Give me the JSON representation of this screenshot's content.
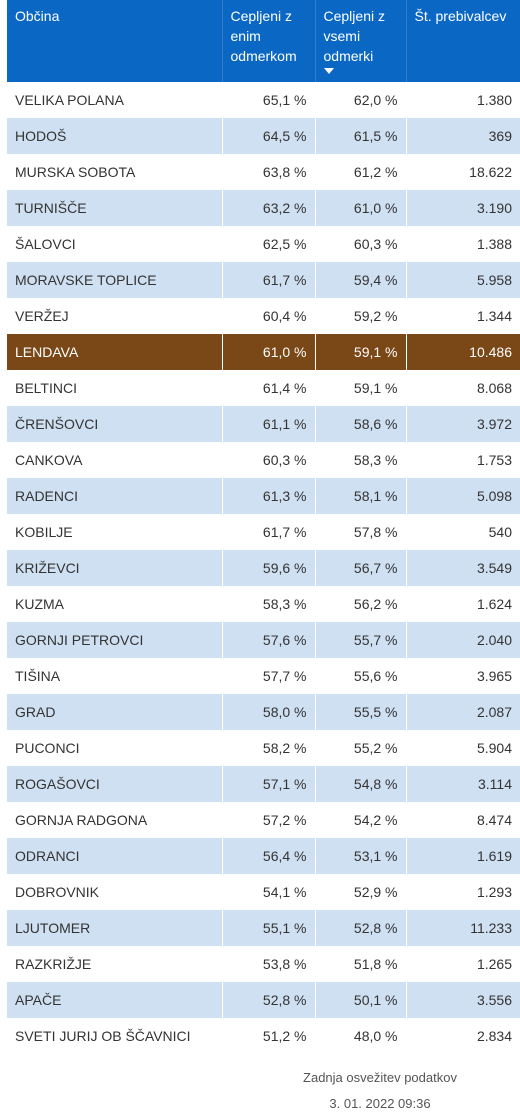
{
  "header": {
    "col1": "Občina",
    "col2_line1": "Cepljeni z",
    "col2_line2": "enim",
    "col2_line3": "odmerkom",
    "col3_line1": "Cepljeni z",
    "col3_line2": "vsemi",
    "col3_line3": "odmerki",
    "col4": "Št. prebivalcev",
    "sort_icon": "sort-descending-icon"
  },
  "highlight_color": "#7a4717",
  "header_color": "#0a68c4",
  "stripe_color": "#cfe0f2",
  "rows": [
    {
      "name": "VELIKA POLANA",
      "one": "65,1 %",
      "all": "62,0 %",
      "pop": "1.380",
      "highlight": false
    },
    {
      "name": "HODOŠ",
      "one": "64,5 %",
      "all": "61,5 %",
      "pop": "369",
      "highlight": false
    },
    {
      "name": "MURSKA SOBOTA",
      "one": "63,8 %",
      "all": "61,2 %",
      "pop": "18.622",
      "highlight": false
    },
    {
      "name": "TURNIŠČE",
      "one": "63,2 %",
      "all": "61,0 %",
      "pop": "3.190",
      "highlight": false
    },
    {
      "name": "ŠALOVCI",
      "one": "62,5 %",
      "all": "60,3 %",
      "pop": "1.388",
      "highlight": false
    },
    {
      "name": "MORAVSKE TOPLICE",
      "one": "61,7 %",
      "all": "59,4 %",
      "pop": "5.958",
      "highlight": false
    },
    {
      "name": "VERŽEJ",
      "one": "60,4 %",
      "all": "59,2 %",
      "pop": "1.344",
      "highlight": false
    },
    {
      "name": "LENDAVA",
      "one": "61,0 %",
      "all": "59,1 %",
      "pop": "10.486",
      "highlight": true
    },
    {
      "name": "BELTINCI",
      "one": "61,4 %",
      "all": "59,1 %",
      "pop": "8.068",
      "highlight": false
    },
    {
      "name": "ČRENŠOVCI",
      "one": "61,1 %",
      "all": "58,6 %",
      "pop": "3.972",
      "highlight": false
    },
    {
      "name": "CANKOVA",
      "one": "60,3 %",
      "all": "58,3 %",
      "pop": "1.753",
      "highlight": false
    },
    {
      "name": "RADENCI",
      "one": "61,3 %",
      "all": "58,1 %",
      "pop": "5.098",
      "highlight": false
    },
    {
      "name": "KOBILJE",
      "one": "61,7 %",
      "all": "57,8 %",
      "pop": "540",
      "highlight": false
    },
    {
      "name": "KRIŽEVCI",
      "one": "59,6 %",
      "all": "56,7 %",
      "pop": "3.549",
      "highlight": false
    },
    {
      "name": "KUZMA",
      "one": "58,3 %",
      "all": "56,2 %",
      "pop": "1.624",
      "highlight": false
    },
    {
      "name": "GORNJI PETROVCI",
      "one": "57,6 %",
      "all": "55,7 %",
      "pop": "2.040",
      "highlight": false
    },
    {
      "name": "TIŠINA",
      "one": "57,7 %",
      "all": "55,6 %",
      "pop": "3.965",
      "highlight": false
    },
    {
      "name": "GRAD",
      "one": "58,0 %",
      "all": "55,5 %",
      "pop": "2.087",
      "highlight": false
    },
    {
      "name": "PUCONCI",
      "one": "58,2 %",
      "all": "55,2 %",
      "pop": "5.904",
      "highlight": false
    },
    {
      "name": "ROGAŠOVCI",
      "one": "57,1 %",
      "all": "54,8 %",
      "pop": "3.114",
      "highlight": false
    },
    {
      "name": "GORNJA RADGONA",
      "one": "57,2 %",
      "all": "54,2 %",
      "pop": "8.474",
      "highlight": false
    },
    {
      "name": "ODRANCI",
      "one": "56,4 %",
      "all": "53,1 %",
      "pop": "1.619",
      "highlight": false
    },
    {
      "name": "DOBROVNIK",
      "one": "54,1 %",
      "all": "52,9 %",
      "pop": "1.293",
      "highlight": false
    },
    {
      "name": "LJUTOMER",
      "one": "55,1 %",
      "all": "52,8 %",
      "pop": "11.233",
      "highlight": false
    },
    {
      "name": "RAZKRIŽJE",
      "one": "53,8 %",
      "all": "51,8 %",
      "pop": "1.265",
      "highlight": false
    },
    {
      "name": "APAČE",
      "one": "52,8 %",
      "all": "50,1 %",
      "pop": "3.556",
      "highlight": false
    },
    {
      "name": "SVETI JURIJ OB ŠČAVNICI",
      "one": "51,2 %",
      "all": "48,0 %",
      "pop": "2.834",
      "highlight": false
    }
  ],
  "footer": {
    "label": "Zadnja osvežitev podatkov",
    "timestamp": "3. 01. 2022 09:36"
  }
}
